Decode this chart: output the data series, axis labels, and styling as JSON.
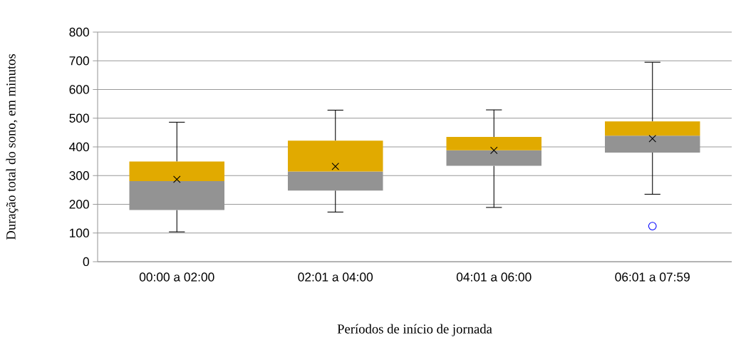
{
  "chart_data": {
    "type": "box",
    "xlabel": "Períodos de início de jornada",
    "ylabel": "Duração total do sono, em minutos",
    "categories": [
      "00:00 a 02:00",
      "02:01 a 04:00",
      "04:01 a 06:00",
      "06:01 a 07:59"
    ],
    "color": "#939393",
    "boxes": [
      {
        "low": 104,
        "q1": 180,
        "median": 281,
        "q3": 349,
        "high": 486,
        "mean": 287
      },
      {
        "low": 173,
        "q1": 248,
        "median": 314,
        "q3": 422,
        "high": 528,
        "mean": 332
      },
      {
        "low": 189,
        "q1": 334,
        "median": 388,
        "q3": 435,
        "high": 529,
        "mean": 388
      },
      {
        "low": 235,
        "q1": 380,
        "median": 439,
        "q3": 489,
        "high": 695,
        "mean": 429,
        "outliers": [
          124
        ]
      }
    ],
    "ylim": [
      0,
      800
    ],
    "yticks": [
      0,
      100,
      200,
      300,
      400,
      500,
      600,
      700,
      800
    ],
    "grid": "y"
  }
}
